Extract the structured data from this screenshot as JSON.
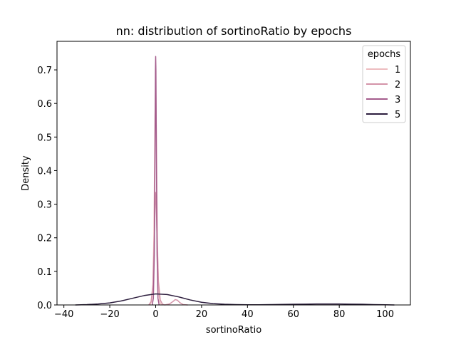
{
  "chart_data": {
    "type": "line",
    "title": "nn: distribution of sortinoRatio by epochs",
    "xlabel": "sortinoRatio",
    "ylabel": "Density",
    "xlim": [
      -43,
      111
    ],
    "ylim": [
      0,
      0.785
    ],
    "xticks": [
      -40,
      -20,
      0,
      20,
      40,
      60,
      80,
      100
    ],
    "yticks": [
      0.0,
      0.1,
      0.2,
      0.3,
      0.4,
      0.5,
      0.6,
      0.7
    ],
    "grid": false,
    "legend": {
      "title": "epochs",
      "placement": "top-right"
    },
    "series": [
      {
        "name": "1",
        "color": "#edbcbf",
        "x": [
          -2.5,
          -1.8,
          -1.2,
          -0.8,
          -0.5,
          -0.3,
          -0.1,
          0.0,
          0.1,
          0.3,
          0.5,
          0.8,
          1.2,
          1.8,
          2.5
        ],
        "y": [
          0.0,
          0.01,
          0.06,
          0.2,
          0.4,
          0.56,
          0.63,
          0.64,
          0.62,
          0.52,
          0.36,
          0.18,
          0.05,
          0.01,
          0.0
        ]
      },
      {
        "name": "2",
        "color": "#d494a9",
        "x": [
          -3.0,
          -2.0,
          -1.2,
          -0.6,
          -0.2,
          0.0,
          0.2,
          0.6,
          1.2,
          2.0,
          3.0,
          4.0,
          6.0,
          7.5,
          8.5,
          9.5,
          10.5,
          12.0,
          14.0
        ],
        "y": [
          0.0,
          0.01,
          0.06,
          0.2,
          0.31,
          0.335,
          0.31,
          0.2,
          0.07,
          0.015,
          0.002,
          0.0,
          0.003,
          0.01,
          0.016,
          0.014,
          0.007,
          0.001,
          0.0
        ]
      },
      {
        "name": "3",
        "color": "#a45c8c",
        "x": [
          -1.5,
          -1.0,
          -0.6,
          -0.3,
          -0.1,
          0.0,
          0.1,
          0.3,
          0.6,
          1.0,
          1.5
        ],
        "y": [
          0.0,
          0.02,
          0.15,
          0.45,
          0.7,
          0.74,
          0.7,
          0.45,
          0.15,
          0.02,
          0.0
        ]
      },
      {
        "name": "5",
        "color": "#2d1e3e",
        "x": [
          -35,
          -30,
          -25,
          -20,
          -15,
          -10,
          -5,
          0,
          5,
          10,
          15,
          20,
          25,
          30,
          35,
          40,
          45,
          50,
          55,
          60,
          65,
          70,
          75,
          80,
          85,
          90,
          95,
          100,
          104
        ],
        "y": [
          0.0,
          0.001,
          0.003,
          0.006,
          0.012,
          0.02,
          0.028,
          0.033,
          0.031,
          0.024,
          0.015,
          0.008,
          0.004,
          0.002,
          0.001,
          0.0005,
          0.0005,
          0.001,
          0.0015,
          0.002,
          0.0025,
          0.003,
          0.003,
          0.003,
          0.0025,
          0.002,
          0.001,
          0.0005,
          0.0
        ]
      }
    ]
  }
}
